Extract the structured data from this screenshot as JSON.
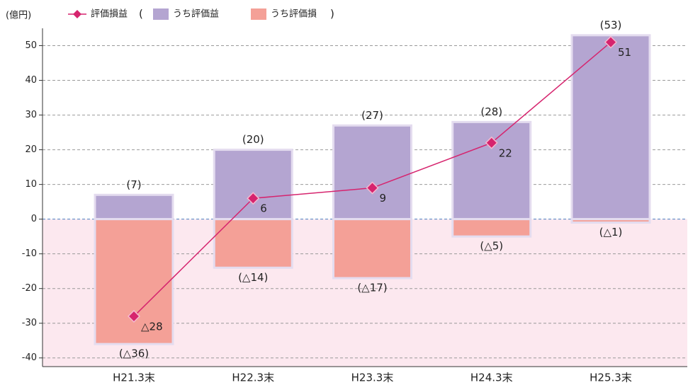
{
  "chart_data": {
    "type": "bar",
    "unit_label": "(億円)",
    "legend_brackets": [
      "(",
      ")"
    ],
    "categories": [
      "H21.3末",
      "H22.3末",
      "H23.3末",
      "H24.3末",
      "H25.3末"
    ],
    "series": [
      {
        "name": "評価損益",
        "type": "line",
        "color": "#d6246e",
        "values": [
          -28,
          6,
          9,
          22,
          51
        ],
        "value_labels": [
          "△28",
          "6",
          "9",
          "22",
          "51"
        ]
      },
      {
        "name": "うち評価益",
        "type": "bar",
        "color": "#b4a5d1",
        "values": [
          7,
          20,
          27,
          28,
          53
        ],
        "value_labels": [
          "(7)",
          "(20)",
          "(27)",
          "(28)",
          "(53)"
        ]
      },
      {
        "name": "うち評価損",
        "type": "bar",
        "color": "#f4a097",
        "values": [
          -36,
          -14,
          -17,
          -5,
          -1
        ],
        "value_labels": [
          "(△36)",
          "(△14)",
          "(△17)",
          "(△5)",
          "(△1)"
        ]
      }
    ],
    "ylim": [
      -42.5,
      55
    ],
    "yticks": [
      -40,
      -30,
      -20,
      -10,
      0,
      10,
      20,
      30,
      40,
      50
    ],
    "grid": true
  }
}
